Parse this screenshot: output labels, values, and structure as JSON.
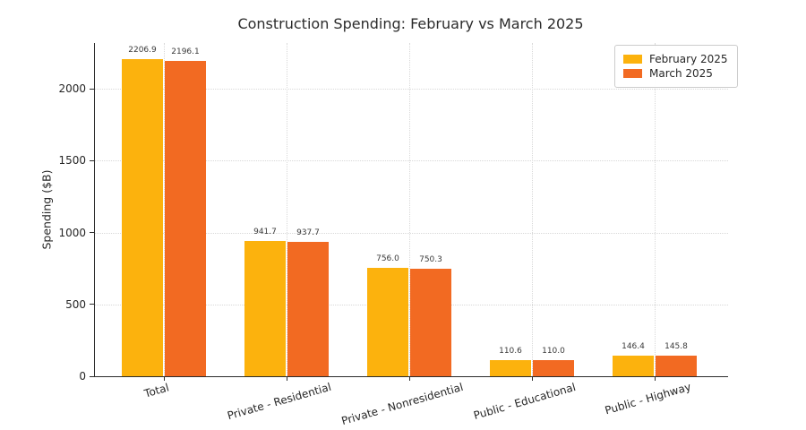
{
  "chart_data": {
    "type": "bar",
    "title": "Construction Spending: February vs March 2025",
    "ylabel": "Spending ($B)",
    "xlabel": "",
    "categories": [
      "Total",
      "Private - Residential",
      "Private - Nonresidential",
      "Public - Educational",
      "Public - Highway"
    ],
    "series": [
      {
        "name": "February 2025",
        "color": "#FCB20D",
        "values": [
          2206.9,
          941.7,
          756.0,
          110.6,
          146.4
        ]
      },
      {
        "name": "March 2025",
        "color": "#F26A22",
        "values": [
          2196.1,
          937.7,
          750.3,
          110.0,
          145.8
        ]
      }
    ],
    "yticks": [
      0,
      500,
      1000,
      1500,
      2000
    ],
    "ylim": [
      0,
      2318
    ],
    "grid": true,
    "legend_position": "upper right",
    "value_label_decimals": 1,
    "xtick_rotation_deg": -16
  }
}
